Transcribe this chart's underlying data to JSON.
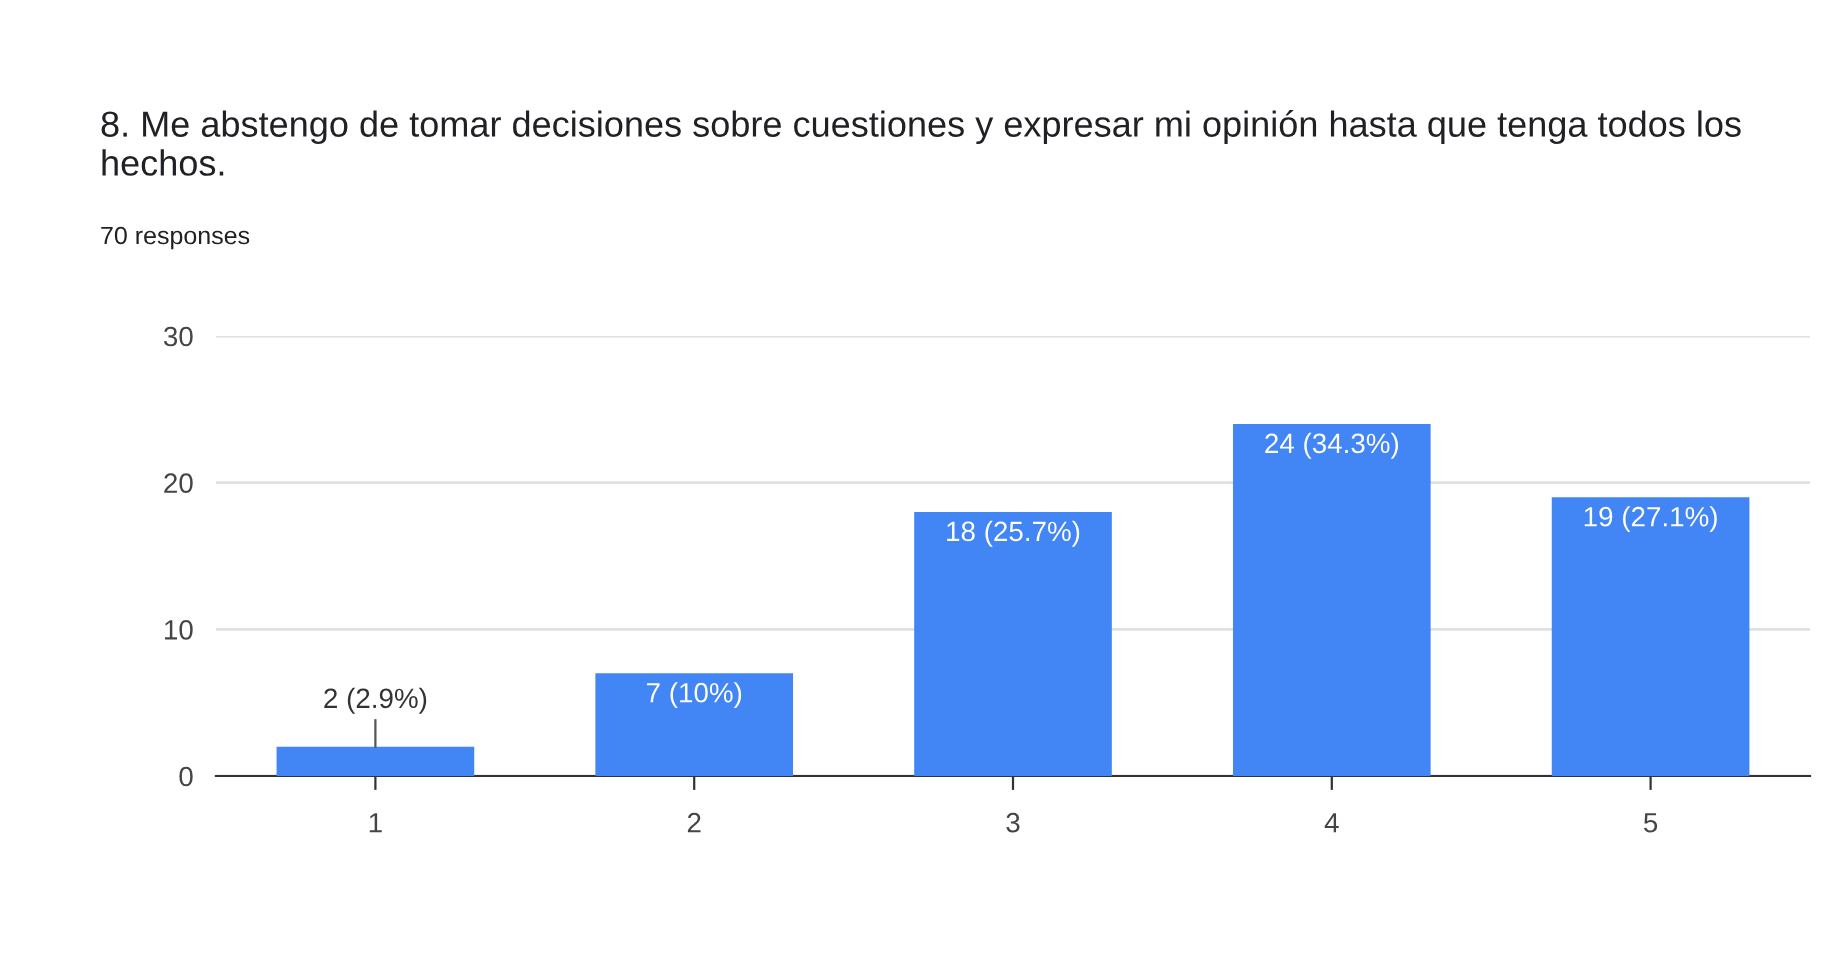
{
  "chart_data": {
    "type": "bar",
    "title": "8. Me abstengo de tomar decisiones sobre cuestiones y expresar mi opinión hasta que tenga todos los hechos.",
    "subtitle": "70 responses",
    "categories": [
      "1",
      "2",
      "3",
      "4",
      "5"
    ],
    "values": [
      2,
      7,
      18,
      24,
      19
    ],
    "color": "#4285f4",
    "value_labels": [
      "2 (2.9%)",
      "7 (10%)",
      "18 (25.7%)",
      "24 (34.3%)",
      "19 (27.1%)"
    ],
    "ylim": [
      0,
      30
    ],
    "yticks": [
      0,
      10,
      20,
      30
    ],
    "grid": "y"
  }
}
